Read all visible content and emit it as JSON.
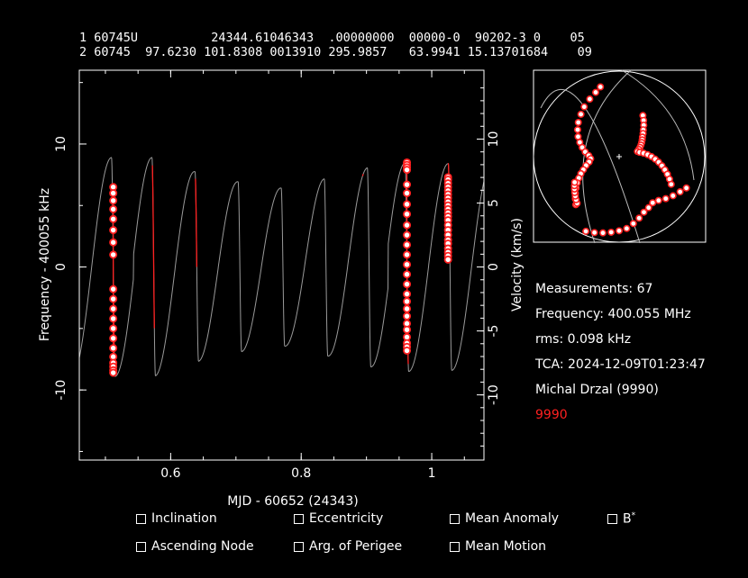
{
  "tle": {
    "line1": "1 60745U          24344.61046343  .00000000  00000-0  90202-3 0    05",
    "line2": "2 60745  97.6230 101.8308 0013910 295.9857   63.9941 15.13701684    09"
  },
  "chart_data": {
    "type": "scatter",
    "xlabel": "MJD - 60652 (24343)",
    "ylabel": "Frequency - 400055 kHz",
    "y2label": "Velocity (km/s)",
    "xlim": [
      0.46,
      1.08
    ],
    "ylim": [
      -15.7,
      16.0
    ],
    "xticks": [
      0.6,
      0.8,
      1.0
    ],
    "xtick_labels": [
      "0.6",
      "0.8",
      "1"
    ],
    "yticks": [
      -10,
      0,
      10
    ],
    "y2ticks": [
      -10,
      -5,
      0,
      5,
      10
    ],
    "colors": {
      "model": "#9a9a9a",
      "fit": "#ff2020",
      "points": "#ff2020",
      "point_fill": "#ffffff"
    },
    "model_curve": {
      "period": 0.0661,
      "descending_crossings": [
        0.512,
        0.574,
        0.64,
        0.706,
        0.772,
        0.838,
        0.904,
        0.962,
        1.028
      ],
      "amplitudes": [
        8.9,
        8.9,
        7.7,
        6.9,
        6.4,
        7.2,
        8.1,
        8.5,
        8.4
      ]
    },
    "passes": [
      {
        "name": "pass-1",
        "x": [
          0.512,
          0.512,
          0.512,
          0.512,
          0.512,
          0.512,
          0.512,
          0.512,
          0.512,
          0.512,
          0.512,
          0.512,
          0.512,
          0.512,
          0.512,
          0.512,
          0.512,
          0.512,
          0.512,
          0.512
        ],
        "y": [
          6.5,
          6.0,
          5.4,
          4.7,
          3.9,
          3.0,
          2.0,
          1.0,
          -1.8,
          -2.6,
          -3.4,
          -4.2,
          -5.0,
          -5.8,
          -6.6,
          -7.3,
          -7.8,
          -8.1,
          -8.4,
          -8.6
        ]
      },
      {
        "name": "pass-2",
        "x": [
          0.962,
          0.962,
          0.962,
          0.962,
          0.962,
          0.962,
          0.962,
          0.962,
          0.962,
          0.962,
          0.962,
          0.962,
          0.962,
          0.962,
          0.962,
          0.962,
          0.962,
          0.962,
          0.962,
          0.962,
          0.962,
          0.962,
          0.962,
          0.962,
          0.962
        ],
        "y": [
          8.5,
          8.3,
          8.1,
          7.9,
          6.7,
          6.0,
          5.1,
          4.3,
          3.4,
          2.6,
          1.8,
          1.0,
          0.2,
          -0.6,
          -1.4,
          -2.2,
          -2.8,
          -3.4,
          -4.0,
          -4.6,
          -5.1,
          -5.7,
          -6.2,
          -6.5,
          -6.8
        ]
      },
      {
        "name": "pass-3",
        "x": [
          1.025,
          1.025,
          1.025,
          1.025,
          1.025,
          1.025,
          1.025,
          1.025,
          1.025,
          1.025,
          1.025,
          1.025,
          1.025,
          1.025,
          1.025,
          1.025,
          1.025,
          1.025,
          1.025,
          1.025,
          1.025,
          1.025
        ],
        "y": [
          7.3,
          7.1,
          6.8,
          6.5,
          6.2,
          5.9,
          5.6,
          5.3,
          5.0,
          4.7,
          4.4,
          4.1,
          3.8,
          3.4,
          3.0,
          2.6,
          2.2,
          1.9,
          1.5,
          1.2,
          0.9,
          0.6
        ]
      }
    ],
    "fit_segments": [
      [
        0.5125,
        0.5135
      ],
      [
        0.572,
        0.575
      ],
      [
        0.638,
        0.64
      ],
      [
        0.894,
        0.895
      ],
      [
        0.962,
        0.964
      ],
      [
        1.025,
        1.027
      ]
    ]
  },
  "skyplot": {
    "tracks": [
      {
        "name": "track-a",
        "az": [
          345,
          340,
          333,
          325,
          318,
          310,
          303,
          296,
          290,
          284,
          278,
          272,
          266,
          260,
          255,
          250,
          246,
          242,
          238,
          234,
          230,
          226,
          222
        ],
        "alt": [
          14,
          18,
          22,
          26,
          30,
          34,
          38,
          42,
          46,
          50,
          54,
          58,
          60,
          58,
          54,
          50,
          46,
          42,
          38,
          34,
          30,
          26,
          22
        ]
      },
      {
        "name": "track-b",
        "az": [
          30,
          34,
          38,
          42,
          46,
          50,
          54,
          58,
          62,
          66,
          70,
          74,
          78,
          82,
          86,
          90,
          94,
          98,
          102,
          106,
          110,
          114,
          118
        ],
        "alt": [
          40,
          44,
          48,
          52,
          55,
          58,
          60,
          62,
          64,
          66,
          68,
          70,
          68,
          64,
          60,
          56,
          52,
          48,
          44,
          40,
          36,
          32,
          28
        ]
      },
      {
        "name": "track-c",
        "az": [
          115,
          120,
          126,
          132,
          138,
          144,
          150,
          156,
          162,
          168,
          174,
          180,
          186,
          192,
          198,
          204
        ],
        "alt": [
          12,
          16,
          20,
          24,
          28,
          30,
          28,
          26,
          22,
          18,
          14,
          12,
          10,
          8,
          6,
          4
        ]
      },
      {
        "name": "track-d",
        "az": [
          222,
          225,
          228,
          231,
          234,
          237,
          240
        ],
        "alt": [
          24,
          26,
          28,
          30,
          32,
          34,
          36
        ]
      }
    ]
  },
  "info": {
    "measurements": "Measurements: 67",
    "frequency": "Frequency: 400.055 MHz",
    "rms": "rms: 0.098 kHz",
    "tca": "TCA: 2024-12-09T01:23:47",
    "observer": "Michal Drzal (9990)",
    "site_id": "9990",
    "site_color": "#ff2020"
  },
  "options": {
    "inclination": "Inclination",
    "eccentricity": "Eccentricity",
    "mean_anomaly": "Mean Anomaly",
    "bstar": "B",
    "bstar_sup": "*",
    "ascending_node": "Ascending Node",
    "arg_perigee": "Arg. of Perigee",
    "mean_motion": "Mean Motion"
  }
}
